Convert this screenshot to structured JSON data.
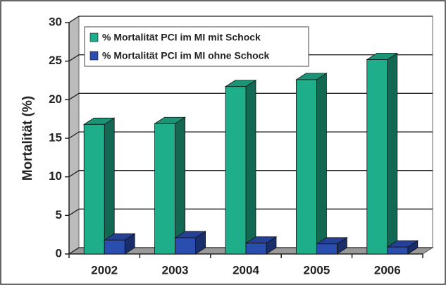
{
  "chart_data": {
    "type": "bar3d",
    "y_label": "Mortalität (%)",
    "categories": [
      "2002",
      "2003",
      "2004",
      "2005",
      "2006"
    ],
    "series": [
      {
        "name": "% Mortalität PCI im MI mit Schock",
        "color": "#1fae8a",
        "values": [
          16.8,
          16.9,
          21.7,
          22.6,
          25.2
        ]
      },
      {
        "name": "% Mortalität PCI im MI ohne Schock",
        "color": "#2a4db0",
        "values": [
          1.8,
          2.1,
          1.4,
          1.3,
          0.9
        ]
      }
    ],
    "ylim": [
      0,
      30
    ],
    "yticks": [
      0,
      5,
      10,
      15,
      20,
      25,
      30
    ],
    "grid": true,
    "legend": "top-left"
  }
}
